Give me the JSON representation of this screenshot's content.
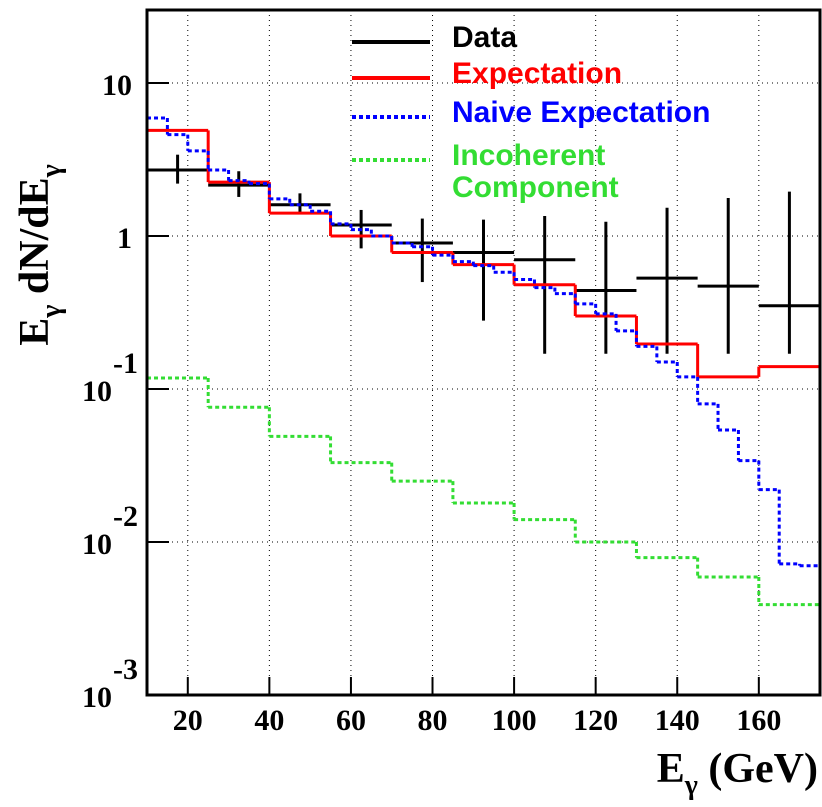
{
  "chart_data": {
    "type": "histogram",
    "xlim": [
      10,
      175
    ],
    "ylim": [
      0.001,
      30
    ],
    "log_y": true,
    "grid": true,
    "xticks": [
      20,
      40,
      60,
      80,
      100,
      120,
      140,
      160
    ],
    "yticks": [
      {
        "value": 0.001,
        "label": "10",
        "exponent": "-3"
      },
      {
        "value": 0.01,
        "label": "10",
        "exponent": "-2"
      },
      {
        "value": 0.1,
        "label": "10",
        "exponent": "-1"
      },
      1,
      10
    ],
    "xlabel_parts": [
      {
        "text": "E",
        "sub": false
      },
      {
        "text": "γ",
        "sub": true
      },
      {
        "text": " (GeV)",
        "sub": false
      }
    ],
    "ylabel_parts": [
      {
        "text": "E",
        "sub": false
      },
      {
        "text": "γ",
        "sub": true
      },
      {
        "text": " dN/dE",
        "sub": false
      },
      {
        "text": "γ",
        "sub": true
      }
    ],
    "series": [
      {
        "name": "Data",
        "color": "#000000",
        "style": "errorbar",
        "bins": [
          10,
          25,
          40,
          55,
          70,
          85,
          100,
          115,
          130,
          145,
          160,
          175
        ],
        "values": [
          2.7,
          2.15,
          1.6,
          1.18,
          0.9,
          0.78,
          0.7,
          0.44,
          0.53,
          0.47,
          0.35
        ],
        "yerr_low": [
          0.5,
          0.35,
          0.2,
          0.35,
          0.4,
          0.5,
          0.53,
          0.27,
          0.36,
          0.3,
          0.18
        ],
        "yerr_high": [
          0.7,
          0.5,
          0.3,
          0.3,
          0.4,
          0.5,
          0.65,
          0.8,
          1.0,
          1.3,
          1.6
        ]
      },
      {
        "name": "Expectation",
        "color": "#ff0000",
        "style": "solid",
        "bins": [
          10,
          25,
          40,
          55,
          70,
          85,
          100,
          115,
          130,
          145,
          160,
          175
        ],
        "values": [
          4.9,
          2.25,
          1.41,
          1.0,
          0.78,
          0.65,
          0.48,
          0.3,
          0.197,
          0.12,
          0.14
        ]
      },
      {
        "name": "Naive Expectation",
        "color": "#0000ff",
        "style": "dotted",
        "bins": [
          10,
          15,
          20,
          25,
          30,
          35,
          40,
          45,
          50,
          55,
          60,
          65,
          70,
          75,
          80,
          85,
          90,
          95,
          100,
          105,
          110,
          115,
          120,
          125,
          130,
          135,
          140,
          145,
          150,
          155,
          160,
          165,
          170,
          175
        ],
        "values": [
          5.9,
          4.6,
          3.6,
          2.7,
          2.3,
          2.2,
          1.75,
          1.6,
          1.45,
          1.2,
          1.1,
          1.0,
          0.9,
          0.85,
          0.75,
          0.68,
          0.64,
          0.58,
          0.52,
          0.46,
          0.42,
          0.36,
          0.31,
          0.24,
          0.19,
          0.15,
          0.12,
          0.08,
          0.054,
          0.034,
          0.022,
          0.0072,
          0.007
        ]
      },
      {
        "name": "Incoherent Component",
        "color": "#33dd33",
        "style": "dotted",
        "bins": [
          10,
          25,
          40,
          55,
          70,
          85,
          100,
          115,
          130,
          145,
          160,
          175
        ],
        "values": [
          0.118,
          0.076,
          0.049,
          0.033,
          0.025,
          0.018,
          0.014,
          0.01,
          0.0079,
          0.0059,
          0.0039
        ]
      }
    ]
  }
}
